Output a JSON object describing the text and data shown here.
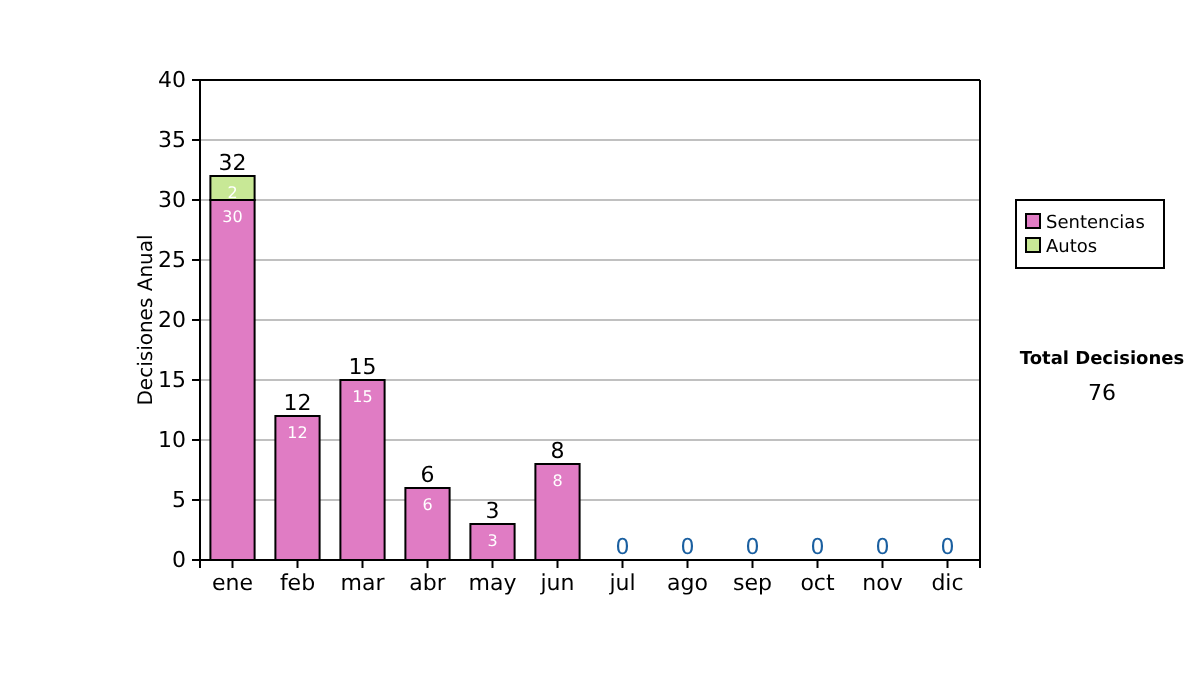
{
  "chart_data": {
    "type": "bar",
    "stacked": true,
    "ylabel": "Decisiones Anual",
    "categories": [
      "ene",
      "feb",
      "mar",
      "abr",
      "may",
      "jun",
      "jul",
      "ago",
      "sep",
      "oct",
      "nov",
      "dic"
    ],
    "series": [
      {
        "name": "Sentencias",
        "color": "#e07cc4",
        "values": [
          30,
          12,
          15,
          6,
          3,
          8,
          0,
          0,
          0,
          0,
          0,
          0
        ],
        "value_labels": [
          "30",
          "12",
          "15",
          "6",
          "3",
          "8",
          null,
          null,
          null,
          null,
          null,
          null
        ]
      },
      {
        "name": "Autos",
        "color": "#c8e896",
        "values": [
          2,
          0,
          0,
          0,
          0,
          0,
          0,
          0,
          0,
          0,
          0,
          0
        ],
        "value_labels": [
          "2",
          null,
          null,
          null,
          null,
          null,
          null,
          null,
          null,
          null,
          null,
          null
        ]
      }
    ],
    "totals": [
      "32",
      "12",
      "15",
      "6",
      "3",
      "8",
      "0",
      "0",
      "0",
      "0",
      "0",
      "0"
    ],
    "ylim": [
      0,
      40
    ],
    "yticks": [
      0,
      5,
      10,
      15,
      20,
      25,
      30,
      35,
      40
    ],
    "grid": "y",
    "legend": "right",
    "annotations": [
      "Total Decisiones",
      "76"
    ]
  }
}
